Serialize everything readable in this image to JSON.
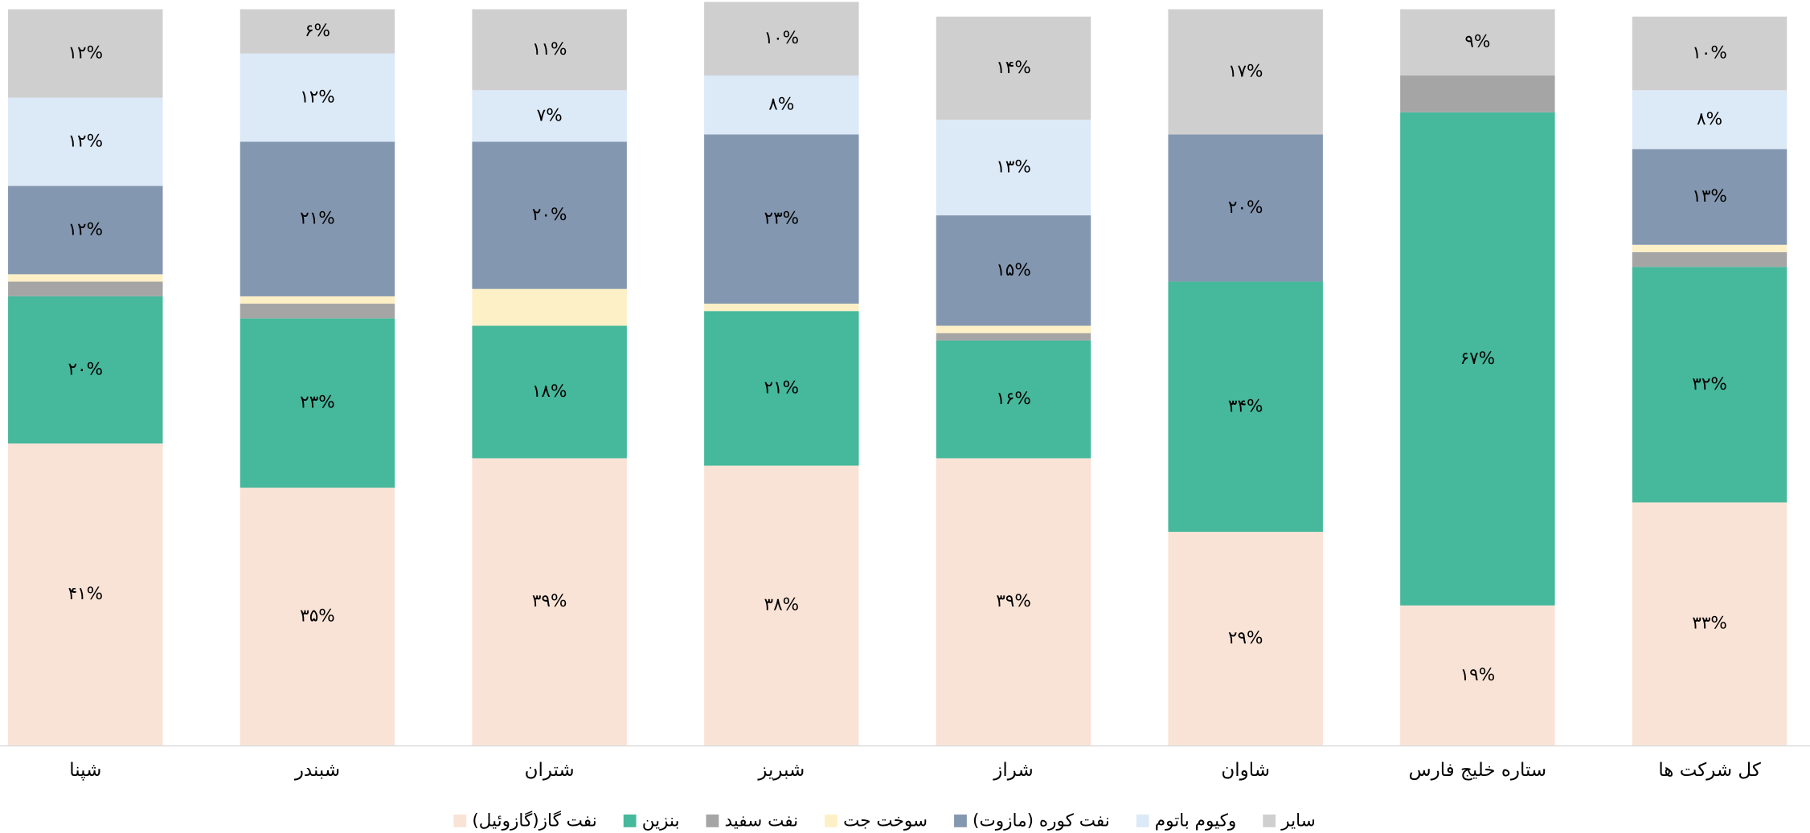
{
  "chart_data": {
    "type": "stacked_bar",
    "categories": [
      "شپنا",
      "شبندر",
      "شتران",
      "شبریز",
      "شراز",
      "شاوان",
      "ستاره خلیج فارس",
      "کل شرکت ها"
    ],
    "ylim": [
      0,
      100
    ],
    "series": [
      {
        "name": "نفت گاز(گازوئیل)",
        "color": "#f9e3d6",
        "values": [
          41,
          35,
          39,
          38,
          39,
          29,
          19,
          33
        ],
        "value_labels": [
          "۴۱%",
          "۳۵%",
          "۳۹%",
          "۳۸%",
          "۳۹%",
          "۲۹%",
          "۱۹%",
          "۳۳%"
        ]
      },
      {
        "name": "بنزین",
        "color": "#46b89b",
        "values": [
          20,
          23,
          18,
          21,
          16,
          34,
          67,
          32
        ],
        "value_labels": [
          "۲۰%",
          "۲۳%",
          "۱۸%",
          "۲۱%",
          "۱۶%",
          "۳۴%",
          "۶۷%",
          "۳۲%"
        ]
      },
      {
        "name": "نفت سفید",
        "color": "#a5a5a5",
        "values": [
          2,
          2,
          0,
          0,
          1,
          0,
          5,
          2
        ],
        "value_labels": [
          null,
          null,
          null,
          null,
          null,
          null,
          null,
          null
        ]
      },
      {
        "name": "سوخت جت",
        "color": "#fdf0c7",
        "values": [
          1,
          1,
          5,
          1,
          1,
          0,
          0,
          1
        ],
        "value_labels": [
          null,
          null,
          null,
          null,
          null,
          null,
          null,
          null
        ]
      },
      {
        "name": "نفت کوره (مازوت)",
        "color": "#8497b0",
        "values": [
          12,
          21,
          20,
          23,
          15,
          20,
          0,
          13
        ],
        "value_labels": [
          "۱۲%",
          "۲۱%",
          "۲۰%",
          "۲۳%",
          "۱۵%",
          "۲۰%",
          null,
          "۱۳%"
        ]
      },
      {
        "name": "وکیوم باتوم",
        "color": "#dce9f6",
        "values": [
          12,
          12,
          7,
          8,
          13,
          0,
          0,
          8
        ],
        "value_labels": [
          "۱۲%",
          "۱۲%",
          "۷%",
          "۸%",
          "۱۳%",
          null,
          null,
          "۸%"
        ]
      },
      {
        "name": "سایر",
        "color": "#d0cfd0",
        "values": [
          12,
          6,
          11,
          10,
          14,
          17,
          9,
          10
        ],
        "value_labels": [
          "۱۲%",
          "۶%",
          "۱۱%",
          "۱۰%",
          "۱۴%",
          "۱۷%",
          "۹%",
          "۱۰%"
        ]
      }
    ]
  }
}
